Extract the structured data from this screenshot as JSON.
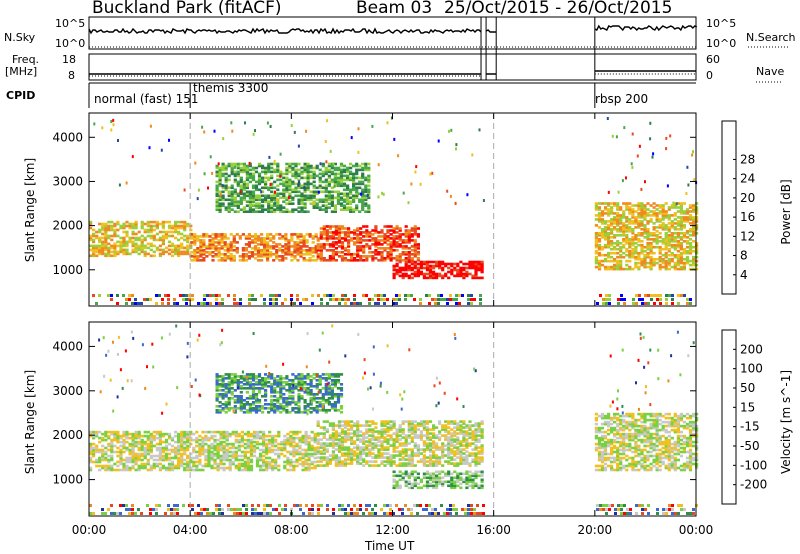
{
  "title": {
    "station": "Buckland Park (fitACF)",
    "beam": "Beam 03",
    "dates": "25/Oct/2015 - 26/Oct/2015"
  },
  "strip_labels": {
    "nsky": "N.Sky",
    "nsky_ticks": [
      "10^5",
      "10^0"
    ],
    "nsearch": "N.Search",
    "freq": "Freq.",
    "freq_unit": "[MHz]",
    "freq_ticks": [
      "18",
      "8"
    ],
    "nave": "Nave",
    "nave_ticks": [
      "60",
      "0"
    ],
    "cpid": "CPID"
  },
  "cpid_segments": [
    {
      "label": "normal (fast) 151",
      "start_hour": 0
    },
    {
      "label": "themis 3300",
      "start_hour": 4
    },
    {
      "label": "rbsp 200",
      "start_hour": 20
    }
  ],
  "chart_data": [
    {
      "type": "heatmap",
      "name": "power",
      "xlabel": "",
      "ylabel": "Slant Range [km]",
      "xlim": [
        0,
        24
      ],
      "ylim": [
        180,
        4550
      ],
      "yticks": [
        1000,
        2000,
        3000,
        4000
      ],
      "colorbar": {
        "label": "Power [dB]",
        "ticks": [
          "4",
          "8",
          "12",
          "16",
          "20",
          "24",
          "28"
        ],
        "colors": [
          "#0000ff",
          "#2448a8",
          "#2f7d4a",
          "#46a84a",
          "#98cf3a",
          "#f0c020",
          "#f08a20",
          "#e84a20",
          "#ff0000"
        ]
      },
      "bands": [
        {
          "h0": 0,
          "h1": 4,
          "r0": 1300,
          "r1": 2100,
          "level": 5
        },
        {
          "h0": 4,
          "h1": 9,
          "r0": 1200,
          "r1": 1800,
          "level": 6
        },
        {
          "h0": 9,
          "h1": 13,
          "r0": 1200,
          "r1": 2000,
          "level": 7
        },
        {
          "h0": 12,
          "h1": 15.5,
          "r0": 800,
          "r1": 1200,
          "level": 8
        },
        {
          "h0": 5,
          "h1": 11,
          "r0": 2300,
          "r1": 3400,
          "level": 3
        },
        {
          "h0": 20,
          "h1": 24,
          "r0": 1000,
          "r1": 2500,
          "level": 5
        }
      ]
    },
    {
      "type": "heatmap",
      "name": "velocity",
      "xlabel": "Time UT",
      "ylabel": "Slant Range [km]",
      "xlim": [
        0,
        24
      ],
      "ylim": [
        180,
        4550
      ],
      "xticks": [
        "00:00",
        "04:00",
        "08:00",
        "12:00",
        "16:00",
        "20:00",
        "00:00"
      ],
      "yticks": [
        1000,
        2000,
        3000,
        4000
      ],
      "colorbar": {
        "label": "Velocity [m s^-1]",
        "ticks": [
          "200",
          "100",
          "50",
          "15",
          "-15",
          "-50",
          "-100",
          "-200"
        ],
        "colors": [
          "#2030a0",
          "#3a6ad0",
          "#2f8f4a",
          "#7ad040",
          "#c8c8c8",
          "#f0c020",
          "#f08a20",
          "#e84a20",
          "#ff0000"
        ]
      },
      "bands": [
        {
          "h0": 0,
          "h1": 9,
          "r0": 1200,
          "r1": 2100,
          "level": 4
        },
        {
          "h0": 9,
          "h1": 15.5,
          "r0": 1300,
          "r1": 2300,
          "level": 4
        },
        {
          "h0": 12,
          "h1": 15.5,
          "r0": 800,
          "r1": 1200,
          "level": 3
        },
        {
          "h0": 5,
          "h1": 10,
          "r0": 2500,
          "r1": 3400,
          "level": 2
        },
        {
          "h0": 20,
          "h1": 24,
          "r0": 1200,
          "r1": 2500,
          "level": 4
        }
      ]
    }
  ]
}
